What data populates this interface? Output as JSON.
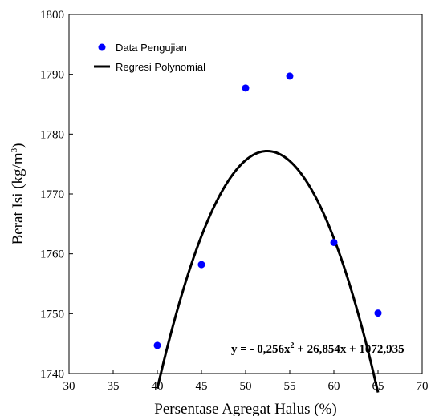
{
  "chart_data": {
    "type": "scatter",
    "title": "",
    "xlabel": "Persentase Agregat Halus (%)",
    "ylabel_main": "Berat Isi (kg/m",
    "ylabel_sup": "3",
    "ylabel_tail": ")",
    "xlim": [
      30,
      70
    ],
    "ylim": [
      1740,
      1800
    ],
    "x_ticks": [
      30,
      35,
      40,
      45,
      50,
      55,
      60,
      65,
      70
    ],
    "y_ticks": [
      1740,
      1750,
      1760,
      1770,
      1780,
      1790,
      1800
    ],
    "grid": false,
    "legend_placement": "top-left",
    "series": [
      {
        "name": "Data Pengujian",
        "kind": "scatter",
        "color": "#0000ff",
        "x": [
          40,
          45,
          50,
          55,
          60,
          65
        ],
        "y": [
          1744.7,
          1758.2,
          1787.7,
          1789.7,
          1761.9,
          1750.1
        ]
      },
      {
        "name": "Regresi Polynomial",
        "kind": "line",
        "color": "#000000",
        "x_range": [
          40,
          65
        ],
        "coefficients": {
          "a": -0.256,
          "b": 26.854,
          "c": 1072.935
        }
      }
    ],
    "annotation": {
      "eq_start": "y = - 0,256x",
      "eq_sup": "2",
      "eq_end": " + 26,854x + 1072,935"
    }
  }
}
